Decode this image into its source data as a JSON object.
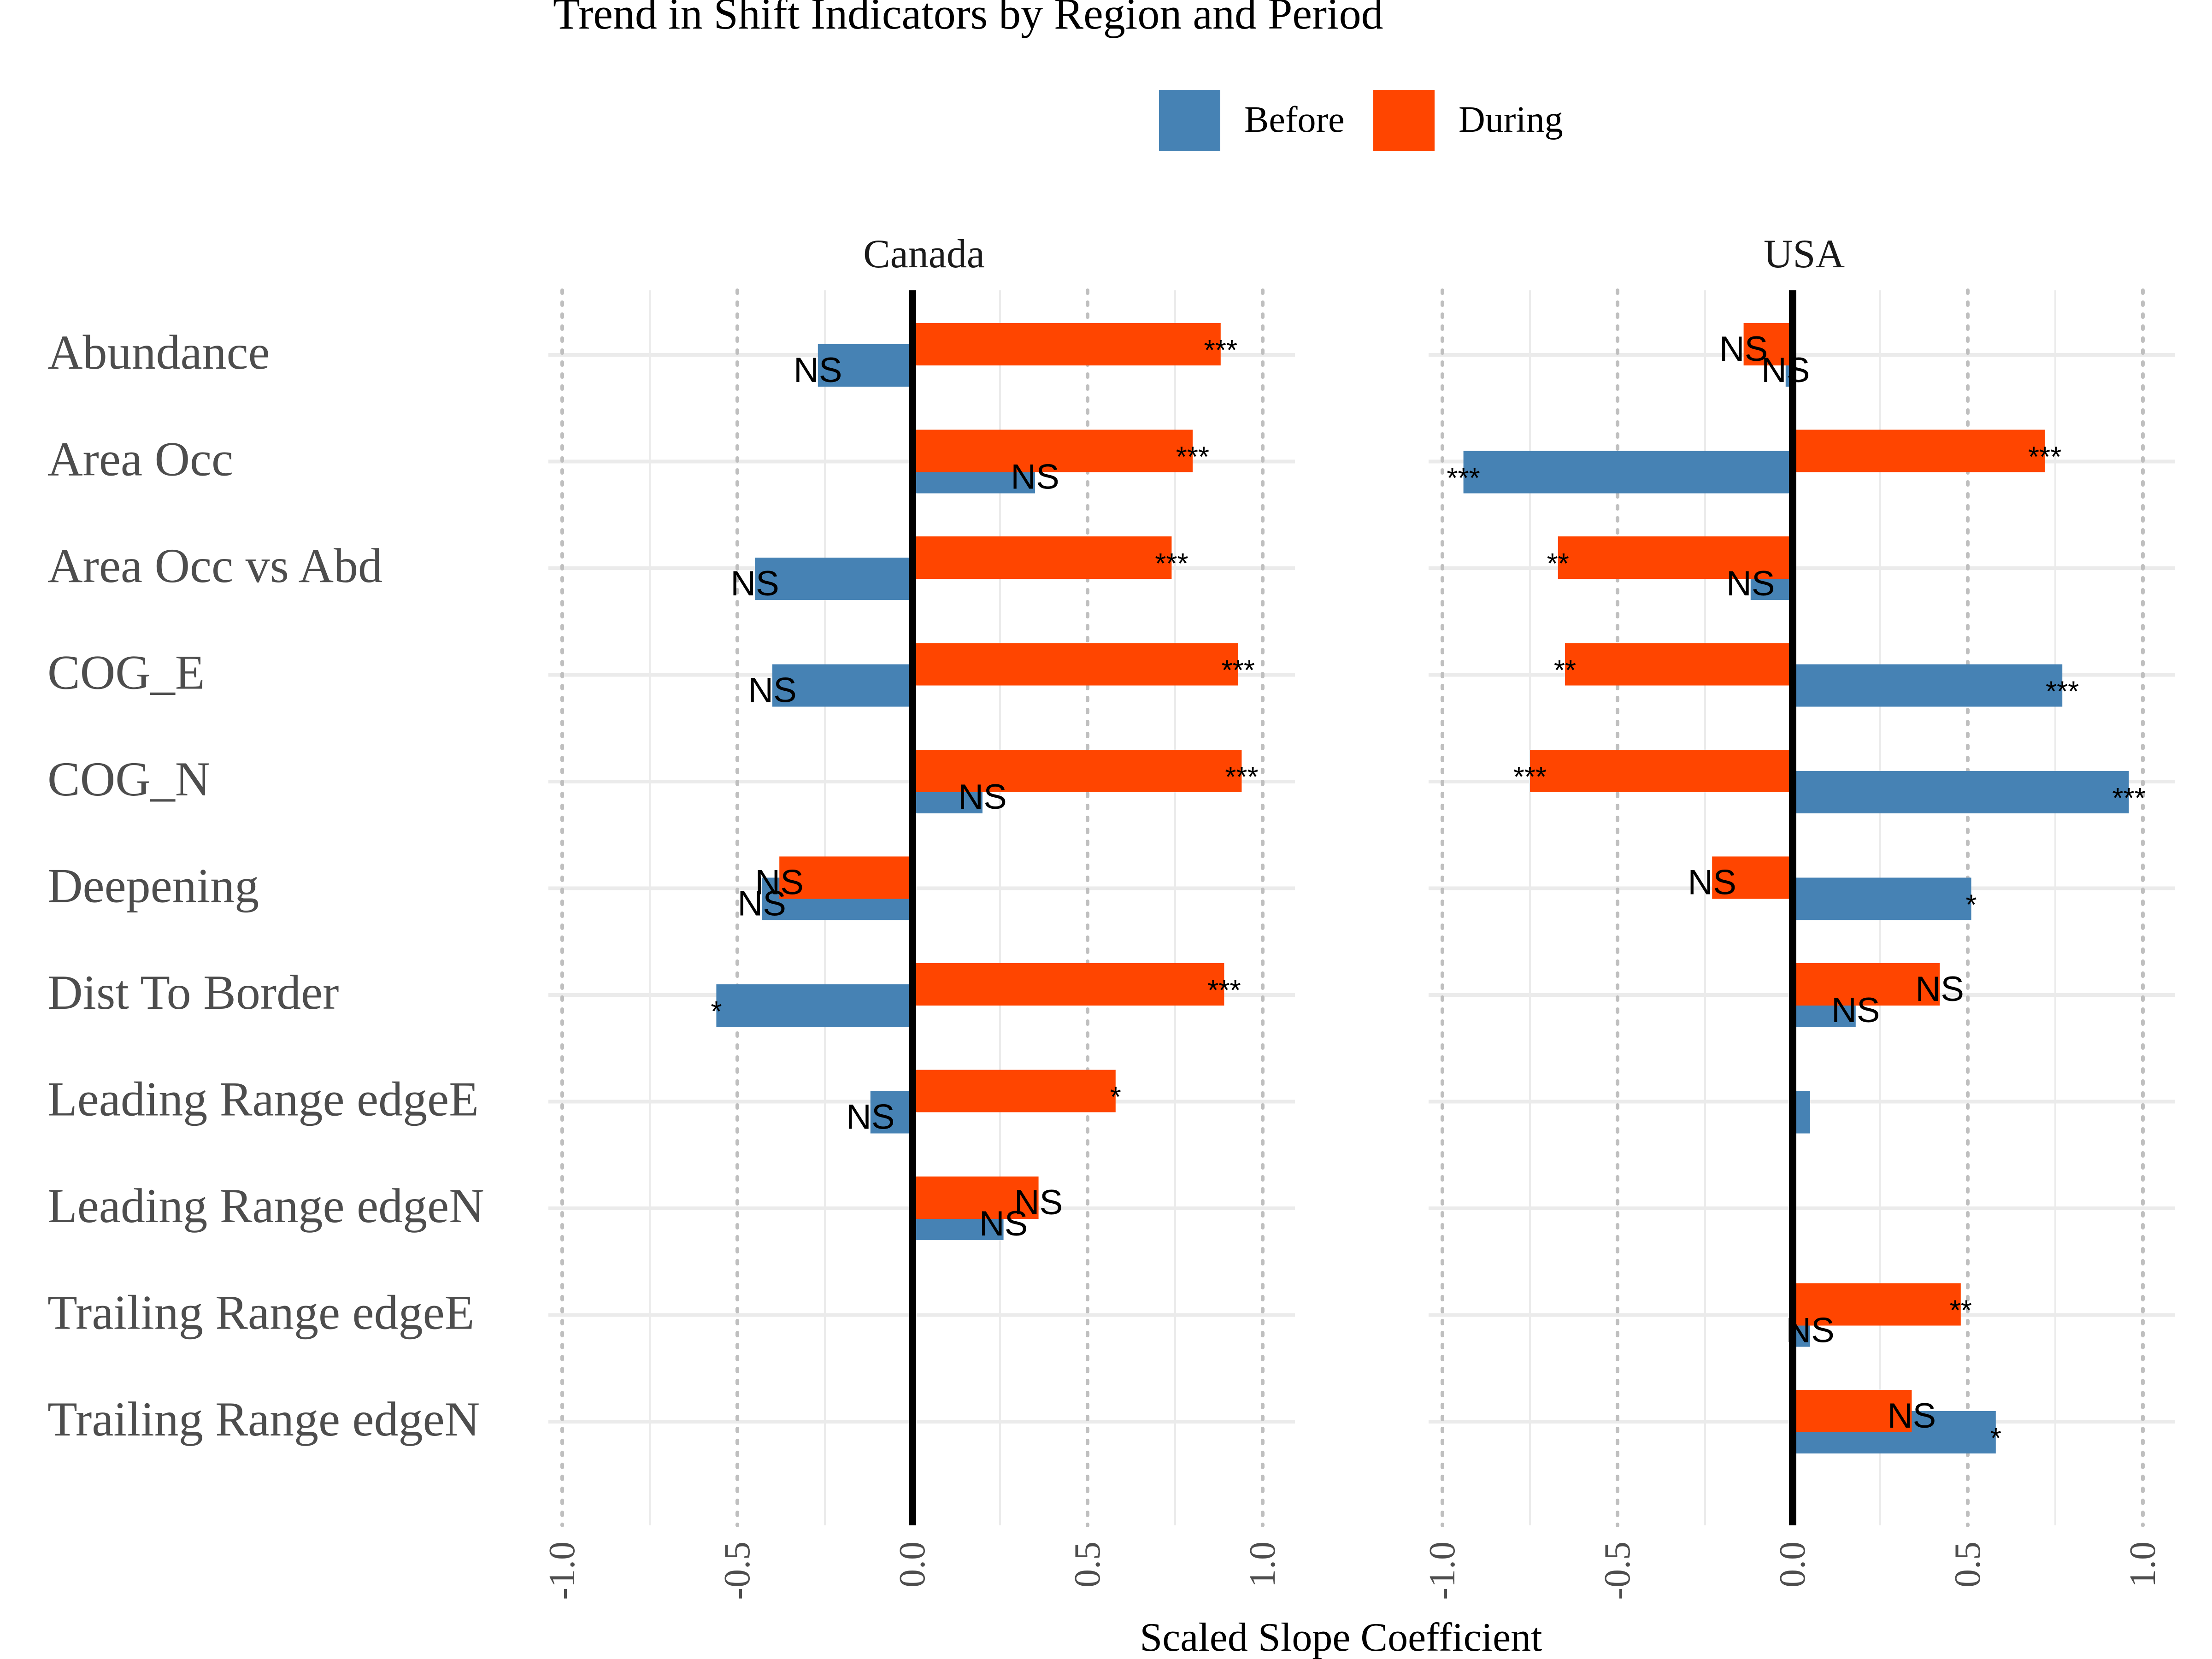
{
  "chart_data": {
    "type": "bar",
    "title": "Trend in Shift Indicators by Region and Period",
    "xlabel": "Scaled Slope Coefficient",
    "ylabel": "",
    "xlim": [
      -1.0,
      1.0
    ],
    "x_ticks": [
      "-1.0",
      "-0.5",
      "0.0",
      "0.5",
      "1.0"
    ],
    "legend_position": "top",
    "legend": [
      {
        "name": "Before",
        "color": "#4682B4"
      },
      {
        "name": "During",
        "color": "#FF4500"
      }
    ],
    "categories": [
      "Abundance",
      "Area Occ",
      "Area Occ vs Abd",
      "COG_E",
      "COG_N",
      "Deepening",
      "Dist To Border",
      "Leading Range edgeE",
      "Leading Range edgeN",
      "Trailing Range edgeE",
      "Trailing Range edgeN"
    ],
    "panels": [
      {
        "name": "Canada",
        "series": [
          {
            "name": "Before",
            "values": [
              -0.27,
              0.35,
              -0.45,
              -0.4,
              0.2,
              -0.43,
              -0.56,
              -0.12,
              0.26,
              null,
              null
            ],
            "labels": [
              "NS",
              "NS",
              "NS",
              "NS",
              "NS",
              "NS",
              "*",
              "NS",
              "NS",
              null,
              null
            ]
          },
          {
            "name": "During",
            "values": [
              0.88,
              0.8,
              0.74,
              0.93,
              0.94,
              -0.38,
              0.89,
              0.58,
              0.36,
              null,
              null
            ],
            "labels": [
              "***",
              "***",
              "***",
              "***",
              "***",
              "NS",
              "***",
              "*",
              "NS",
              null,
              null
            ]
          }
        ]
      },
      {
        "name": "USA",
        "series": [
          {
            "name": "Before",
            "values": [
              -0.02,
              -0.94,
              -0.12,
              0.77,
              0.96,
              0.51,
              0.18,
              0.05,
              null,
              0.05,
              0.58
            ],
            "labels": [
              "NS",
              "***",
              "NS",
              "***",
              "***",
              "*",
              "NS",
              null,
              null,
              "NS",
              "*"
            ]
          },
          {
            "name": "During",
            "values": [
              -0.14,
              0.72,
              -0.67,
              -0.65,
              -0.75,
              -0.23,
              0.42,
              null,
              null,
              0.48,
              0.34
            ],
            "labels": [
              "NS",
              "***",
              "**",
              "**",
              "***",
              "NS",
              "NS",
              null,
              null,
              "**",
              "NS"
            ]
          }
        ]
      }
    ],
    "grid": true,
    "zero_line": true
  }
}
